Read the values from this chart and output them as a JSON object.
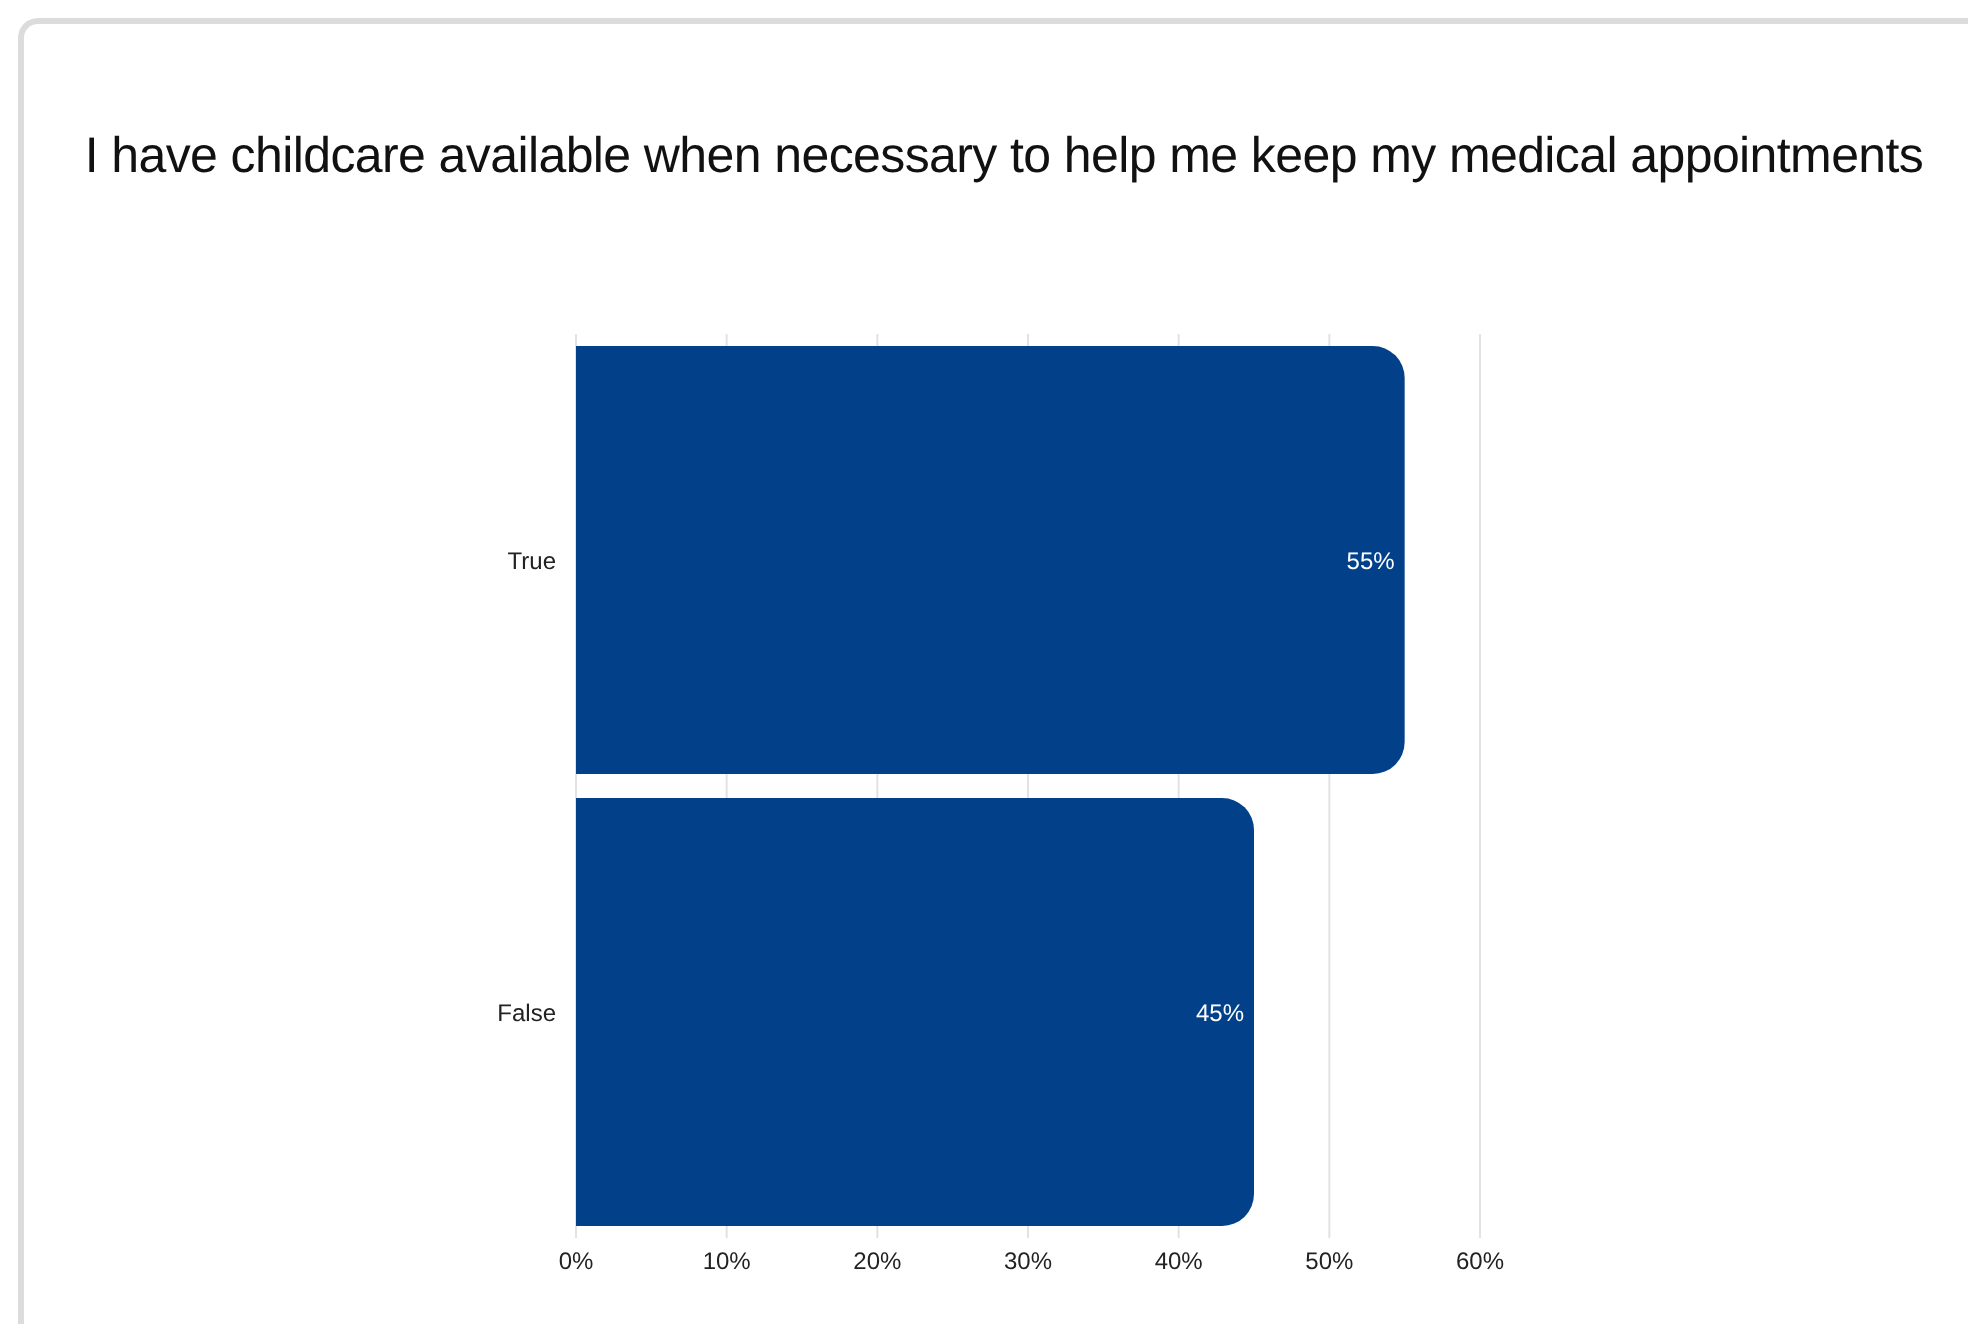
{
  "chart_data": {
    "type": "bar",
    "title": "I have childcare available when necessary to help me keep my medical appointments",
    "orientation": "horizontal",
    "categories": [
      "True",
      "False"
    ],
    "values": [
      55,
      45
    ],
    "value_labels": [
      "55%",
      "45%"
    ],
    "color": "#02418a",
    "xlim": [
      0,
      60
    ],
    "xticks": [
      {
        "value": 0,
        "label": "0%"
      },
      {
        "value": 10,
        "label": "10%"
      },
      {
        "value": 20,
        "label": "20%"
      },
      {
        "value": 30,
        "label": "30%"
      },
      {
        "value": 40,
        "label": "40%"
      },
      {
        "value": 50,
        "label": "50%"
      },
      {
        "value": 60,
        "label": "60%"
      }
    ],
    "grid": "x"
  }
}
